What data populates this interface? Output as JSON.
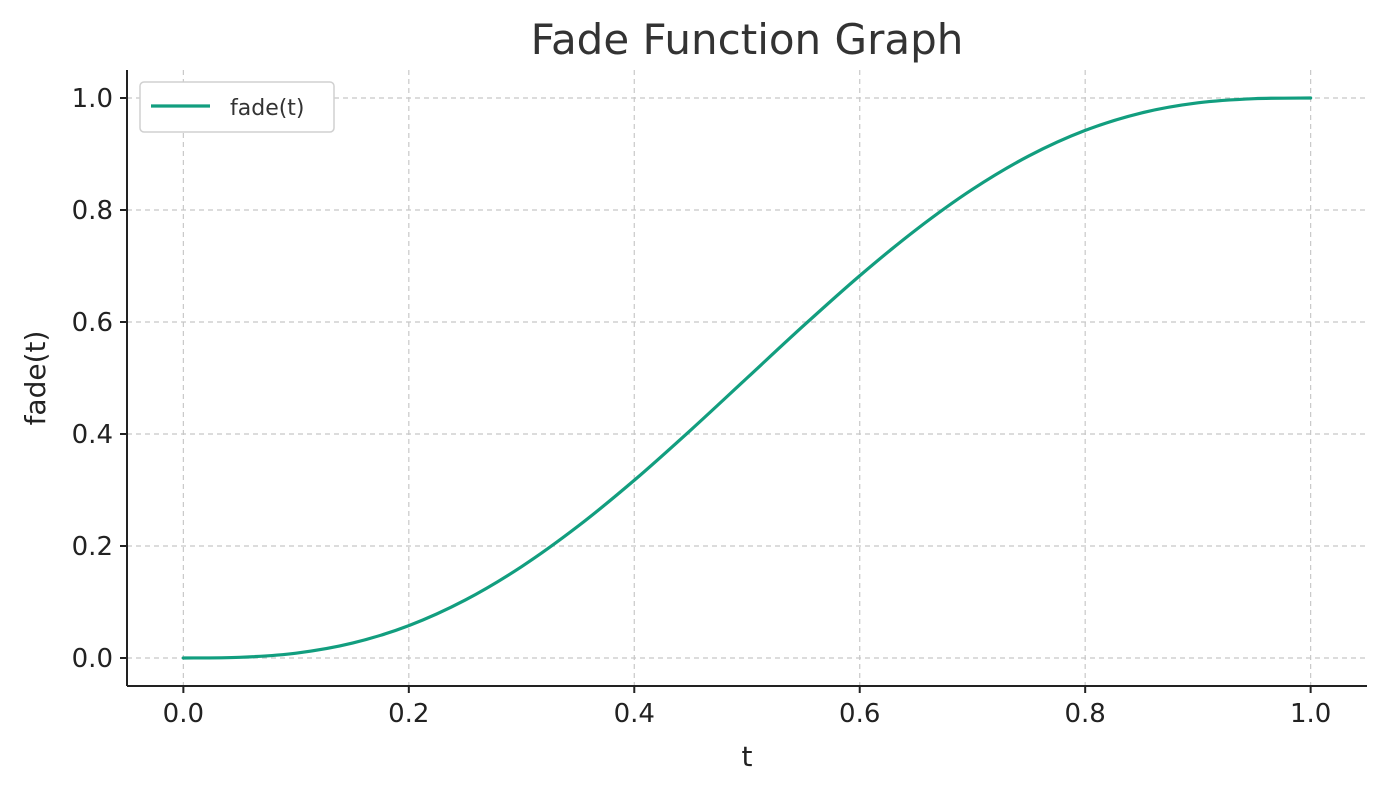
{
  "chart_data": {
    "type": "line",
    "title": "Fade Function Graph",
    "xlabel": "t",
    "ylabel": "fade(t)",
    "xlim": [
      -0.05,
      1.05
    ],
    "ylim": [
      -0.05,
      1.05
    ],
    "xticks": [
      0.0,
      0.2,
      0.4,
      0.6,
      0.8,
      1.0
    ],
    "xtick_labels": [
      "0.0",
      "0.2",
      "0.4",
      "0.6",
      "0.8",
      "1.0"
    ],
    "yticks": [
      0.0,
      0.2,
      0.4,
      0.6,
      0.8,
      1.0
    ],
    "ytick_labels": [
      "0.0",
      "0.2",
      "0.4",
      "0.6",
      "0.8",
      "1.0"
    ],
    "grid": true,
    "legend_position": "top-left",
    "series": [
      {
        "name": "fade(t)",
        "color": "#129e7f",
        "x": [
          0.0,
          0.05,
          0.1,
          0.15,
          0.2,
          0.25,
          0.3,
          0.35,
          0.4,
          0.45,
          0.5,
          0.55,
          0.6,
          0.65,
          0.7,
          0.75,
          0.8,
          0.85,
          0.9,
          0.95,
          1.0
        ],
        "y": [
          0.0,
          0.0012,
          0.0086,
          0.0266,
          0.0579,
          0.1035,
          0.1631,
          0.2352,
          0.3174,
          0.4069,
          0.5,
          0.5931,
          0.6826,
          0.7648,
          0.8369,
          0.8965,
          0.9421,
          0.9734,
          0.9914,
          0.9988,
          1.0
        ]
      }
    ]
  }
}
